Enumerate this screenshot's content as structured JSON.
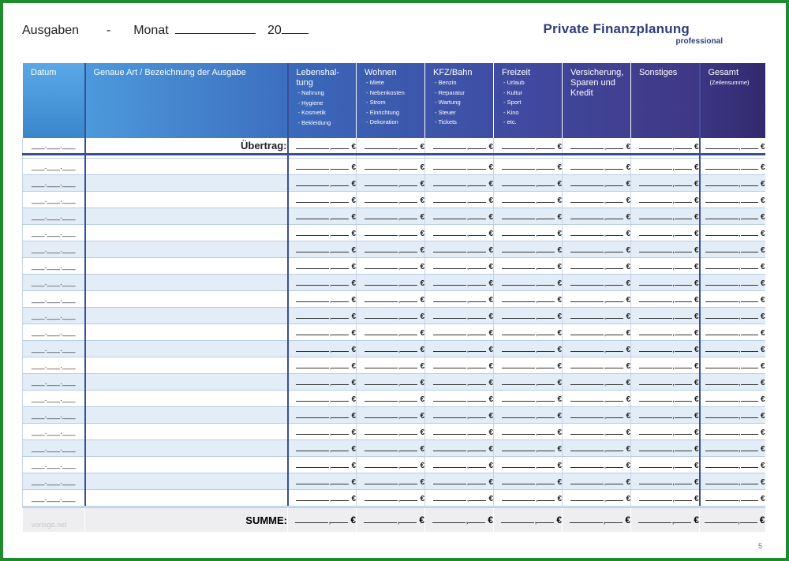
{
  "header": {
    "ausgaben": "Ausgaben",
    "dash": "-",
    "monat": "Monat",
    "year_prefix": "20"
  },
  "brand": {
    "title": "Private Finanzplanung",
    "subtitle": "professional"
  },
  "columns": [
    {
      "title": "Datum",
      "items": []
    },
    {
      "title": "Genaue Art / Bezeichnung  der Ausgabe",
      "items": []
    },
    {
      "title": "Lebenshal-\ntung",
      "items": [
        "- Nahrung",
        "- Hygiene",
        "- Kosmetik",
        "- Bekleidung"
      ]
    },
    {
      "title": "Wohnen",
      "items": [
        "- Miete",
        "- Nebenkosten",
        "- Strom",
        "- Einrichtung",
        "- Dekoration"
      ]
    },
    {
      "title": "KFZ/Bahn",
      "items": [
        "- Benzin",
        "- Reparatur",
        "- Wartung",
        "- Steuer",
        "- Tickets"
      ]
    },
    {
      "title": "Freizeit",
      "items": [
        "- Urlaub",
        "- Kultur",
        "- Sport",
        "- Kino",
        "- etc."
      ]
    },
    {
      "title": "Versicherung,\nSparen und\nKredit",
      "items": []
    },
    {
      "title": "Sonstiges",
      "items": []
    },
    {
      "title": "Gesamt",
      "items": [
        "(Zeilensumme)"
      ]
    }
  ],
  "carry_label": "Übertrag:",
  "sum_label": "SUMME:",
  "currency": "€",
  "date_placeholder": "___.___.___",
  "row_count": 21,
  "page_number": "5",
  "watermark": "vorlage.net"
}
